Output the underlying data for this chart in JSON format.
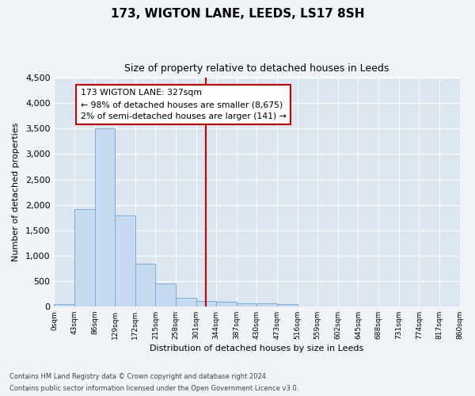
{
  "title": "173, WIGTON LANE, LEEDS, LS17 8SH",
  "subtitle": "Size of property relative to detached houses in Leeds",
  "xlabel": "Distribution of detached houses by size in Leeds",
  "ylabel": "Number of detached properties",
  "bin_labels": [
    "0sqm",
    "43sqm",
    "86sqm",
    "129sqm",
    "172sqm",
    "215sqm",
    "258sqm",
    "301sqm",
    "344sqm",
    "387sqm",
    "430sqm",
    "473sqm",
    "516sqm",
    "559sqm",
    "602sqm",
    "645sqm",
    "688sqm",
    "731sqm",
    "774sqm",
    "817sqm",
    "860sqm"
  ],
  "bar_values": [
    50,
    1920,
    3500,
    1790,
    840,
    450,
    170,
    100,
    85,
    60,
    55,
    50,
    0,
    0,
    0,
    0,
    0,
    0,
    0,
    0
  ],
  "bar_color": "#c6d9f0",
  "bar_edge_color": "#7bafd4",
  "vline_x": 7.5,
  "vline_color": "#cc0000",
  "annotation_text": "173 WIGTON LANE: 327sqm\n← 98% of detached houses are smaller (8,675)\n2% of semi-detached houses are larger (141) →",
  "annotation_box_color": "#ffffff",
  "annotation_box_edge": "#cc0000",
  "ylim": [
    0,
    4500
  ],
  "yticks": [
    0,
    500,
    1000,
    1500,
    2000,
    2500,
    3000,
    3500,
    4000,
    4500
  ],
  "bg_color": "#dce6f0",
  "fig_bg_color": "#f0f4f8",
  "footer1": "Contains HM Land Registry data © Crown copyright and database right 2024.",
  "footer2": "Contains public sector information licensed under the Open Government Licence v3.0."
}
